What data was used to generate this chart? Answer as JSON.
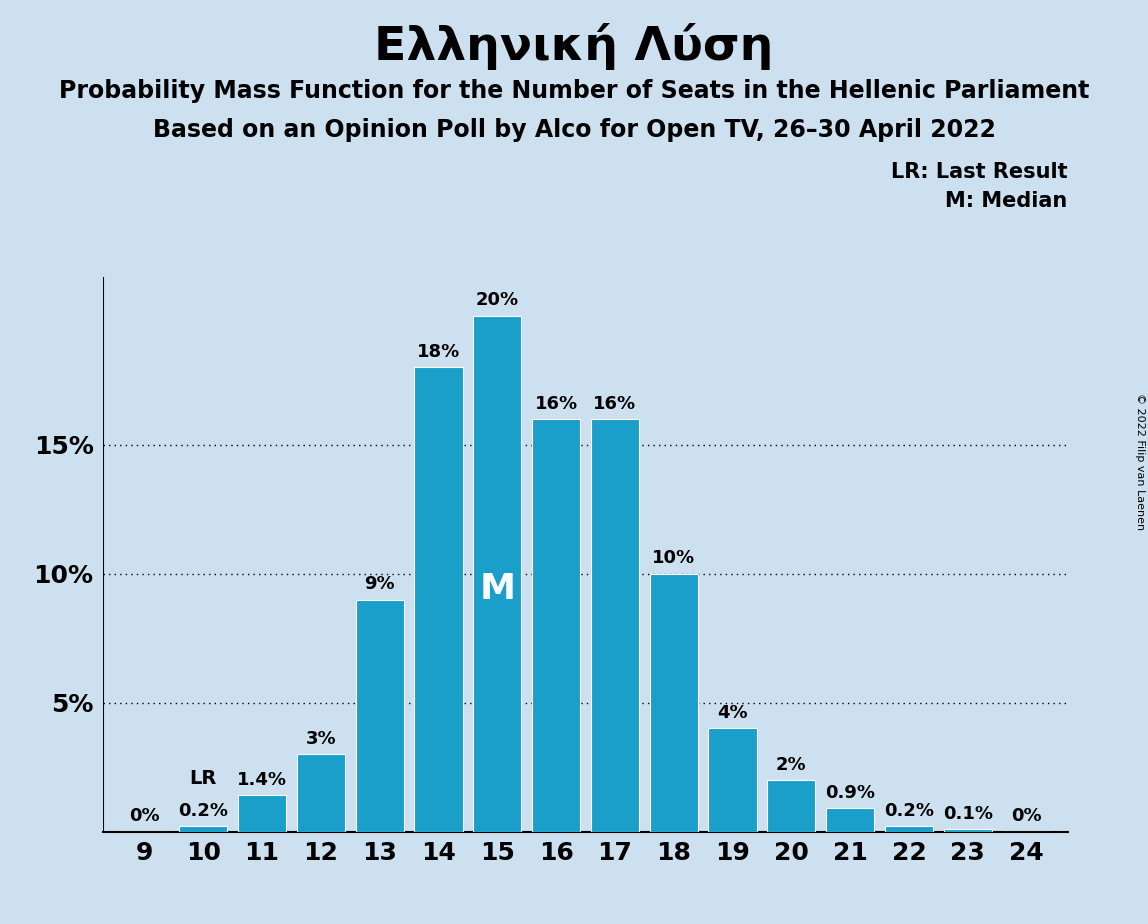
{
  "title": "Ελληνική Λύση",
  "subtitle1": "Probability Mass Function for the Number of Seats in the Hellenic Parliament",
  "subtitle2": "Based on an Opinion Poll by Alco for Open TV, 26–30 April 2022",
  "copyright": "© 2022 Filip van Laenen",
  "legend1": "LR: Last Result",
  "legend2": "M: Median",
  "seats": [
    9,
    10,
    11,
    12,
    13,
    14,
    15,
    16,
    17,
    18,
    19,
    20,
    21,
    22,
    23,
    24
  ],
  "values": [
    0.0,
    0.2,
    1.4,
    3.0,
    9.0,
    18.0,
    20.0,
    16.0,
    16.0,
    10.0,
    4.0,
    2.0,
    0.9,
    0.2,
    0.1,
    0.0
  ],
  "bar_color": "#1a9fca",
  "background_color": "#cce0f0",
  "median_seat": 15,
  "lr_seat": 10,
  "yticks": [
    5,
    10,
    15
  ],
  "ylim": [
    0,
    21.5
  ],
  "bar_labels": [
    "0%",
    "0.2%",
    "1.4%",
    "3%",
    "9%",
    "18%",
    "20%",
    "16%",
    "16%",
    "10%",
    "4%",
    "2%",
    "0.9%",
    "0.2%",
    "0.1%",
    "0%"
  ],
  "title_fontsize": 34,
  "subtitle_fontsize": 17,
  "tick_fontsize": 18,
  "bar_label_fontsize": 13,
  "legend_fontsize": 15,
  "copyright_fontsize": 8
}
